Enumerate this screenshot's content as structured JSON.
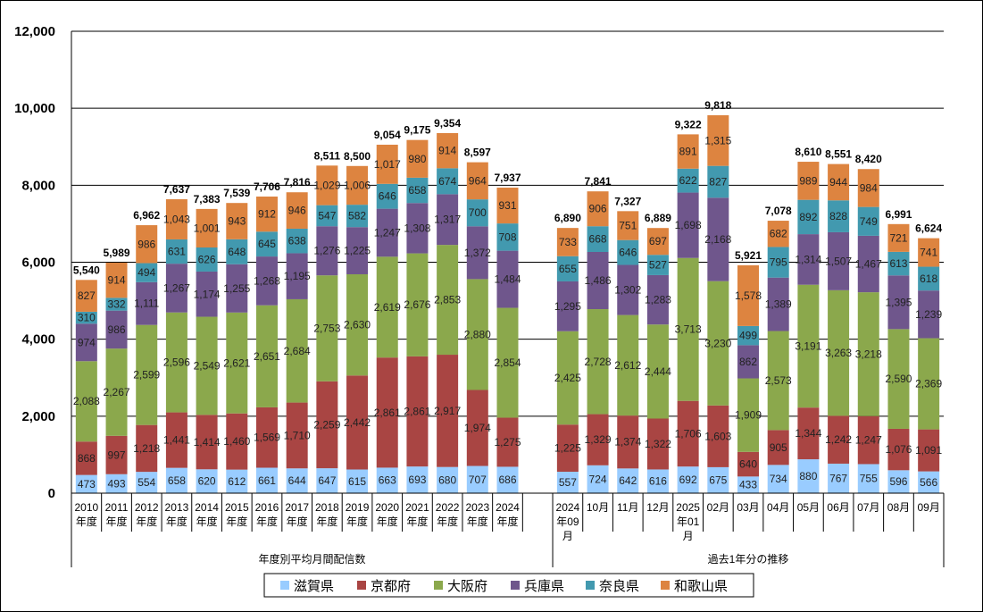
{
  "chart_data": {
    "type": "bar",
    "stacked": true,
    "ylim": [
      0,
      12000
    ],
    "yticks": [
      0,
      2000,
      4000,
      6000,
      8000,
      10000,
      12000
    ],
    "ytick_labels": [
      "0",
      "2,000",
      "4,000",
      "6,000",
      "8,000",
      "10,000",
      "12,000"
    ],
    "grid": true,
    "legend_position": "bottom",
    "groups": [
      {
        "label": "年度別平均月間配信数",
        "categories": [
          [
            "2010",
            "年度"
          ],
          [
            "2011",
            "年度"
          ],
          [
            "2012",
            "年度"
          ],
          [
            "2013",
            "年度"
          ],
          [
            "2014",
            "年度"
          ],
          [
            "2015",
            "年度"
          ],
          [
            "2016",
            "年度"
          ],
          [
            "2017",
            "年度"
          ],
          [
            "2018",
            "年度"
          ],
          [
            "2019",
            "年度"
          ],
          [
            "2020",
            "年度"
          ],
          [
            "2021",
            "年度"
          ],
          [
            "2022",
            "年度"
          ],
          [
            "2023",
            "年度"
          ],
          [
            "2024",
            "年度"
          ]
        ],
        "totals": [
          "5,540",
          "5,989",
          "6,962",
          "7,637",
          "7,383",
          "7,539",
          "7,706",
          "7,816",
          "8,511",
          "8,500",
          "9,054",
          "9,175",
          "9,354",
          "8,597",
          "7,937"
        ],
        "series": [
          {
            "name": "滋賀県",
            "values": [
              473,
              493,
              554,
              658,
              620,
              612,
              661,
              644,
              647,
              615,
              663,
              693,
              680,
              707,
              686
            ]
          },
          {
            "name": "京都府",
            "values": [
              868,
              997,
              1218,
              1441,
              1414,
              1460,
              1569,
              1710,
              2259,
              2442,
              2861,
              2861,
              2917,
              1974,
              1275
            ]
          },
          {
            "name": "大阪府",
            "values": [
              2088,
              2267,
              2599,
              2596,
              2549,
              2621,
              2651,
              2684,
              2753,
              2630,
              2619,
              2676,
              2853,
              2880,
              2854
            ]
          },
          {
            "name": "兵庫県",
            "values": [
              974,
              986,
              1111,
              1267,
              1174,
              1255,
              1268,
              1195,
              1276,
              1225,
              1247,
              1308,
              1317,
              1372,
              1484
            ]
          },
          {
            "name": "奈良県",
            "values": [
              310,
              332,
              494,
              631,
              626,
              648,
              645,
              638,
              547,
              582,
              646,
              658,
              674,
              700,
              708
            ]
          },
          {
            "name": "和歌山県",
            "values": [
              827,
              914,
              986,
              1043,
              1001,
              943,
              912,
              946,
              1029,
              1006,
              1017,
              980,
              914,
              964,
              931
            ]
          }
        ]
      },
      {
        "label": "過去1年分の推移",
        "categories": [
          [
            "2024",
            "年09",
            "月"
          ],
          [
            "10月"
          ],
          [
            "11月"
          ],
          [
            "12月"
          ],
          [
            "2025",
            "年01",
            "月"
          ],
          [
            "02月"
          ],
          [
            "03月"
          ],
          [
            "04月"
          ],
          [
            "05月"
          ],
          [
            "06月"
          ],
          [
            "07月"
          ],
          [
            "08月"
          ],
          [
            "09月"
          ]
        ],
        "totals": [
          "6,890",
          "7,841",
          "7,327",
          "6,889",
          "9,322",
          "9,818",
          "5,921",
          "7,078",
          "8,610",
          "8,551",
          "8,420",
          "6,991",
          "6,624"
        ],
        "series": [
          {
            "name": "滋賀県",
            "values": [
              557,
              724,
              642,
              616,
              692,
              675,
              433,
              734,
              880,
              767,
              755,
              596,
              566
            ]
          },
          {
            "name": "京都府",
            "values": [
              1225,
              1329,
              1374,
              1322,
              1706,
              1603,
              640,
              905,
              1344,
              1242,
              1247,
              1076,
              1091
            ]
          },
          {
            "name": "大阪府",
            "values": [
              2425,
              2728,
              2612,
              2444,
              3713,
              3230,
              1909,
              2573,
              3191,
              3263,
              3218,
              2590,
              2369
            ]
          },
          {
            "name": "兵庫県",
            "values": [
              1295,
              1486,
              1302,
              1283,
              1698,
              2168,
              862,
              1389,
              1314,
              1507,
              1467,
              1395,
              1239
            ]
          },
          {
            "name": "奈良県",
            "values": [
              655,
              668,
              646,
              527,
              622,
              827,
              499,
              795,
              892,
              828,
              749,
              613,
              618
            ]
          },
          {
            "name": "和歌山県",
            "values": [
              733,
              906,
              751,
              697,
              891,
              1315,
              1578,
              682,
              989,
              944,
              984,
              721,
              741
            ]
          }
        ]
      }
    ],
    "legend": [
      {
        "name": "滋賀県",
        "color": "#99CCFF"
      },
      {
        "name": "京都府",
        "color": "#A94543"
      },
      {
        "name": "大阪府",
        "color": "#8BA84C"
      },
      {
        "name": "兵庫県",
        "color": "#6F568C"
      },
      {
        "name": "奈良県",
        "color": "#4299AF"
      },
      {
        "name": "和歌山県",
        "color": "#DD8440"
      }
    ]
  }
}
